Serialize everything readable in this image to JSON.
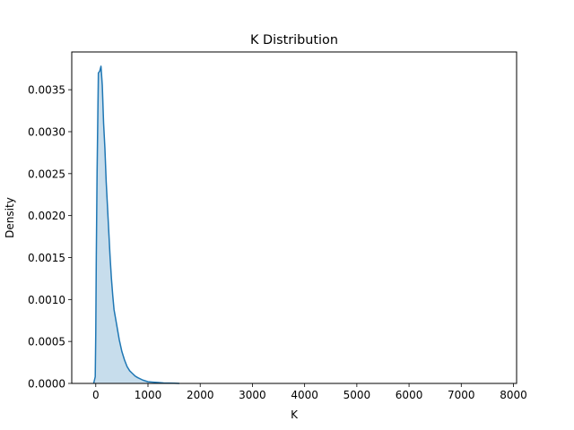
{
  "chart_data": {
    "type": "area",
    "title": "K Distribution",
    "xlabel": "K",
    "ylabel": "Density",
    "xlim": [
      -460,
      8060
    ],
    "ylim": [
      0,
      0.00395
    ],
    "xticks": [
      0,
      1000,
      2000,
      3000,
      4000,
      5000,
      6000,
      7000,
      8000
    ],
    "xtick_labels": [
      "0",
      "1000",
      "2000",
      "3000",
      "4000",
      "5000",
      "6000",
      "7000",
      "8000"
    ],
    "yticks": [
      0,
      0.0005,
      0.001,
      0.0015,
      0.002,
      0.0025,
      0.003,
      0.0035
    ],
    "ytick_labels": [
      "0.0000",
      "0.0005",
      "0.0010",
      "0.0015",
      "0.0020",
      "0.0025",
      "0.0030",
      "0.0035"
    ],
    "grid": false,
    "legend": "none",
    "series": [
      {
        "x": [
          -40,
          -10,
          0,
          10,
          25,
          50,
          75,
          100,
          125,
          150,
          175,
          200,
          225,
          250,
          275,
          300,
          325,
          350,
          400,
          450,
          500,
          550,
          600,
          650,
          700,
          750,
          800,
          900,
          1000,
          1100,
          1200,
          1300,
          1400,
          1500,
          1600
        ],
        "y": [
          0.0,
          8e-05,
          0.0006,
          0.0015,
          0.0025,
          0.0037,
          0.00372,
          0.00378,
          0.00355,
          0.0031,
          0.0028,
          0.0024,
          0.0021,
          0.0018,
          0.0015,
          0.00125,
          0.00105,
          0.00088,
          0.0007,
          0.00052,
          0.00038,
          0.00028,
          0.0002,
          0.00015,
          0.00012,
          9e-05,
          7e-05,
          4e-05,
          2e-05,
          1.5e-05,
          1e-05,
          6e-06,
          4e-06,
          2e-06,
          0.0
        ],
        "line_color": "#1f77b4",
        "fill_color": "#1f77b4",
        "fill_opacity": 0.25
      }
    ]
  }
}
